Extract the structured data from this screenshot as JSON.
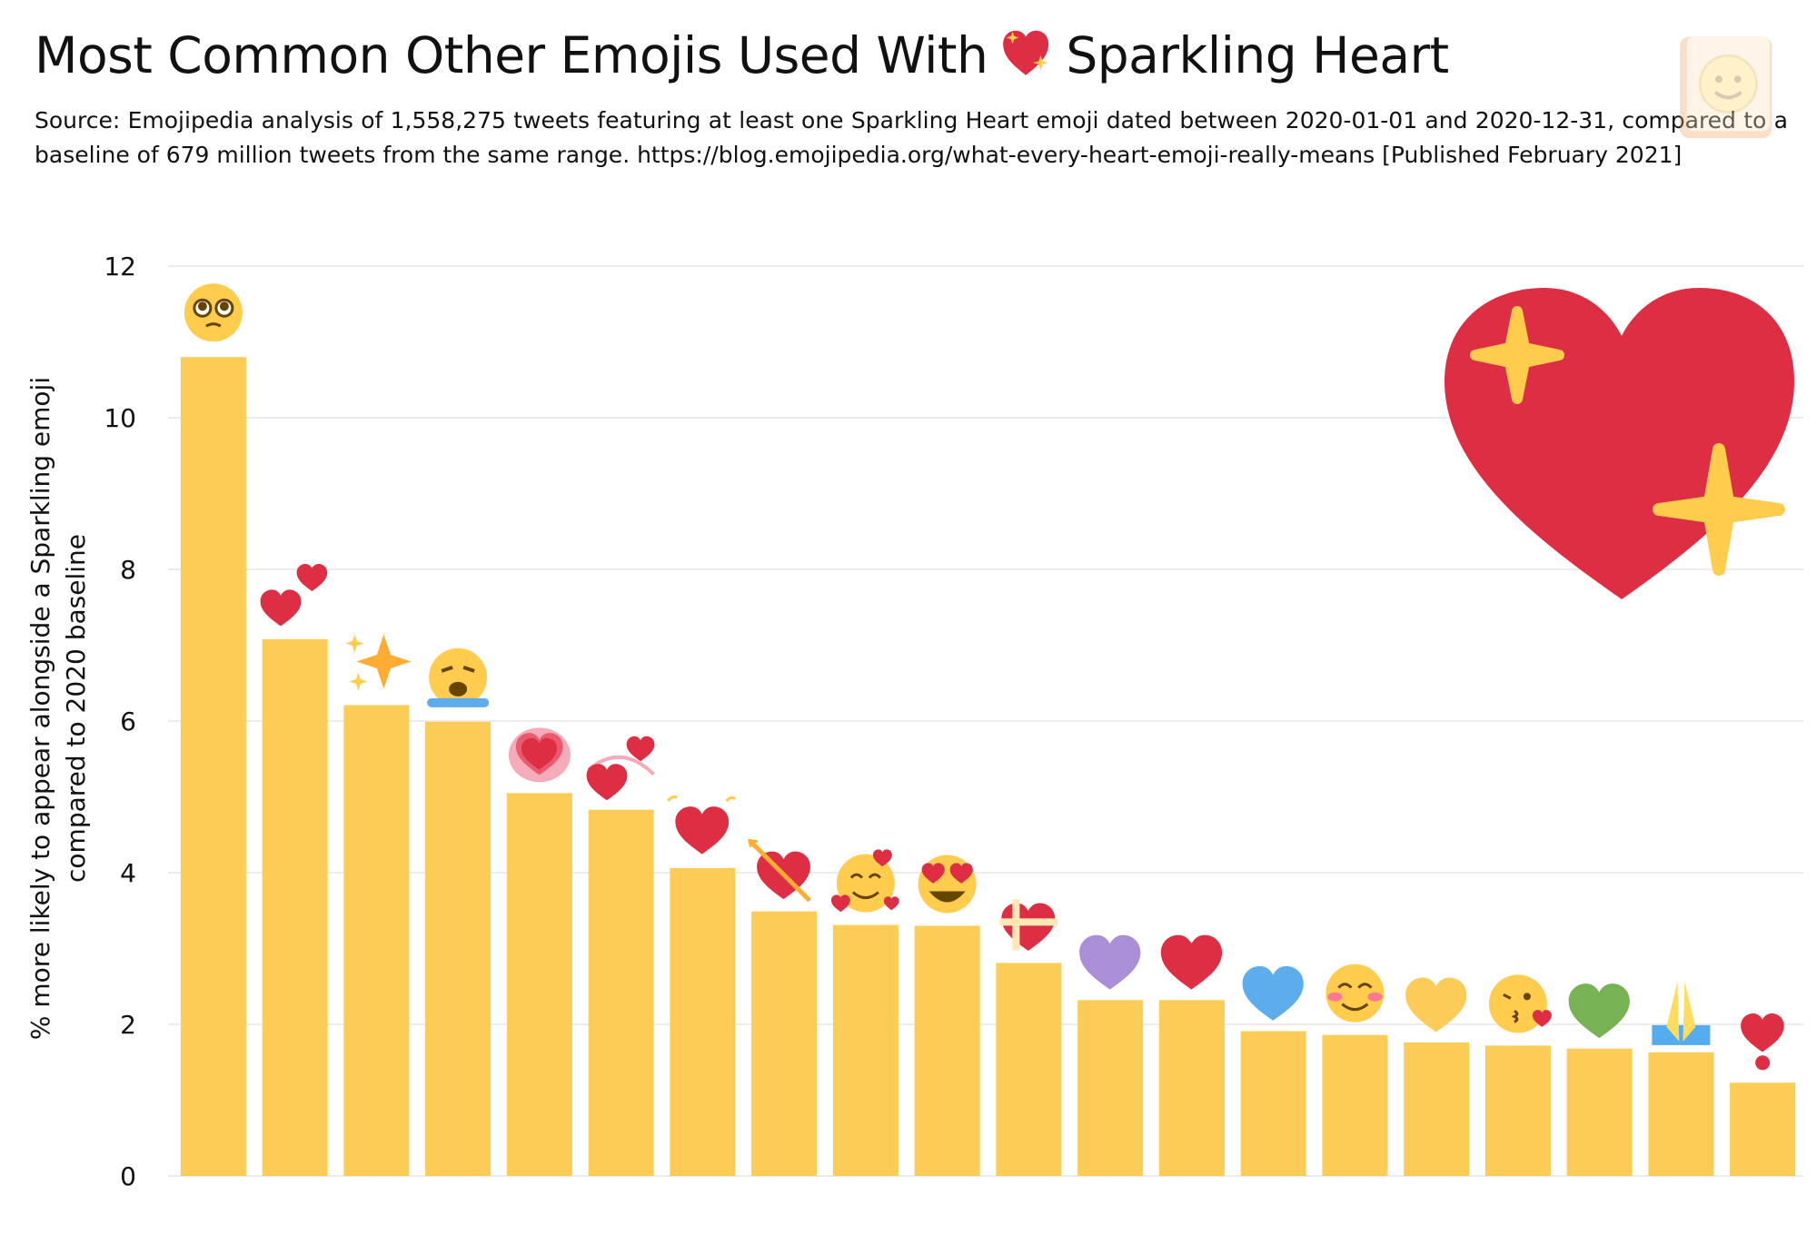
{
  "header": {
    "title_before": "Most Common Other Emojis Used With",
    "title_after": "Sparkling Heart",
    "subtitle": "Source: Emojipedia analysis of 1,558,275 tweets featuring at least one Sparkling Heart emoji dated between 2020-01-01 and 2020-12-31, compared to a baseline of 679 million tweets from the same range. https://blog.emojipedia.org/what-every-heart-emoji-really-means [Published February 2021]"
  },
  "colors": {
    "bar": "#FCCC56",
    "grid": "#E6E6E6",
    "heart_red": "#DD2E44",
    "sparkle": "#FFCC4D"
  },
  "chart_data": {
    "type": "bar",
    "ylabel_line1": "% more likely to appear alongside a Sparkling emoji",
    "ylabel_line2": "compared to 2020 baseline",
    "ylim": [
      0,
      12
    ],
    "yticks": [
      0,
      2,
      4,
      6,
      8,
      10,
      12
    ],
    "grid": true,
    "categories": [
      "pleading-face",
      "two-hearts",
      "sparkles",
      "loudly-crying-face",
      "growing-heart",
      "revolving-hearts",
      "beating-heart",
      "heart-with-arrow",
      "smiling-face-with-hearts",
      "smiling-face-with-heart-eyes",
      "heart-with-ribbon",
      "purple-heart",
      "red-heart",
      "blue-heart",
      "smiling-face-with-smiling-eyes",
      "yellow-heart",
      "face-blowing-a-kiss",
      "green-heart",
      "folded-hands",
      "heart-exclamation"
    ],
    "values": [
      10.8,
      7.08,
      6.21,
      5.99,
      5.05,
      4.83,
      4.06,
      3.49,
      3.31,
      3.3,
      2.81,
      2.32,
      2.32,
      1.91,
      1.86,
      1.76,
      1.72,
      1.68,
      1.63,
      1.23
    ]
  }
}
